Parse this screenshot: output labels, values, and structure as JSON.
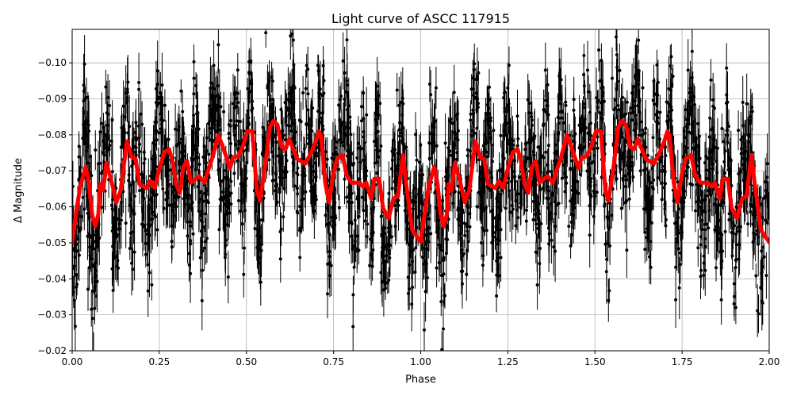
{
  "chart_data": {
    "type": "scatter",
    "title": "Light curve of ASCC 117915",
    "xlabel": "Phase",
    "ylabel": "Δ Magnitude",
    "xlim": [
      0.0,
      2.0
    ],
    "ylim": [
      -0.02,
      -0.1093
    ],
    "y_inverted": true,
    "grid": true,
    "xticks": [
      "0.00",
      "0.25",
      "0.50",
      "0.75",
      "1.00",
      "1.25",
      "1.50",
      "1.75",
      "2.00"
    ],
    "xtick_values": [
      0,
      0.25,
      0.5,
      0.75,
      1,
      1.25,
      1.5,
      1.75,
      2
    ],
    "yticks": [
      "−0.10",
      "−0.09",
      "−0.08",
      "−0.07",
      "−0.06",
      "−0.05",
      "−0.04",
      "−0.03",
      "−0.02"
    ],
    "ytick_values": [
      -0.1,
      -0.09,
      -0.08,
      -0.07,
      -0.06,
      -0.05,
      -0.04,
      -0.03,
      -0.02
    ],
    "colors": {
      "observations": "#000000",
      "model": "#ff0000",
      "grid": "#b0b0b0"
    },
    "series": [
      {
        "style": "black points with error bars",
        "color": "#000000"
      },
      {
        "style": "thick red line",
        "color": "#ff0000",
        "repeat_period": 1.0,
        "x": [
          0.0,
          0.014,
          0.023,
          0.039,
          0.048,
          0.057,
          0.066,
          0.075,
          0.08,
          0.089,
          0.098,
          0.111,
          0.127,
          0.139,
          0.157,
          0.171,
          0.182,
          0.193,
          0.214,
          0.225,
          0.237,
          0.248,
          0.264,
          0.278,
          0.289,
          0.298,
          0.309,
          0.319,
          0.33,
          0.341,
          0.364,
          0.38,
          0.389,
          0.403,
          0.419,
          0.43,
          0.453,
          0.462,
          0.476,
          0.489,
          0.503,
          0.517,
          0.53,
          0.539,
          0.555,
          0.567,
          0.578,
          0.589,
          0.601,
          0.612,
          0.623,
          0.646,
          0.669,
          0.685,
          0.699,
          0.708,
          0.714,
          0.726,
          0.737,
          0.749,
          0.76,
          0.776,
          0.787,
          0.801,
          0.824,
          0.835,
          0.844,
          0.858,
          0.867,
          0.881,
          0.892,
          0.908,
          0.922,
          0.935,
          0.949,
          0.958,
          0.976,
          1.0
        ],
        "y": [
          -0.0502,
          -0.0601,
          -0.0656,
          -0.0711,
          -0.0667,
          -0.0579,
          -0.0546,
          -0.0579,
          -0.0663,
          -0.0645,
          -0.0722,
          -0.0678,
          -0.0612,
          -0.0645,
          -0.0782,
          -0.0738,
          -0.0733,
          -0.0663,
          -0.0652,
          -0.0672,
          -0.0652,
          -0.0698,
          -0.0751,
          -0.076,
          -0.0722,
          -0.0663,
          -0.0639,
          -0.0711,
          -0.0727,
          -0.0667,
          -0.0685,
          -0.0667,
          -0.0698,
          -0.0738,
          -0.0799,
          -0.0773,
          -0.0707,
          -0.0738,
          -0.074,
          -0.0766,
          -0.081,
          -0.081,
          -0.0645,
          -0.0617,
          -0.0722,
          -0.0821,
          -0.0839,
          -0.0828,
          -0.0766,
          -0.076,
          -0.0788,
          -0.0733,
          -0.072,
          -0.0749,
          -0.0782,
          -0.081,
          -0.0799,
          -0.0667,
          -0.0612,
          -0.0689,
          -0.0733,
          -0.0744,
          -0.0689,
          -0.0667,
          -0.0667,
          -0.0656,
          -0.0667,
          -0.0623,
          -0.0678,
          -0.0678,
          -0.0597,
          -0.0568,
          -0.0623,
          -0.063,
          -0.0744,
          -0.0667,
          -0.0535,
          -0.0502
        ]
      }
    ]
  }
}
